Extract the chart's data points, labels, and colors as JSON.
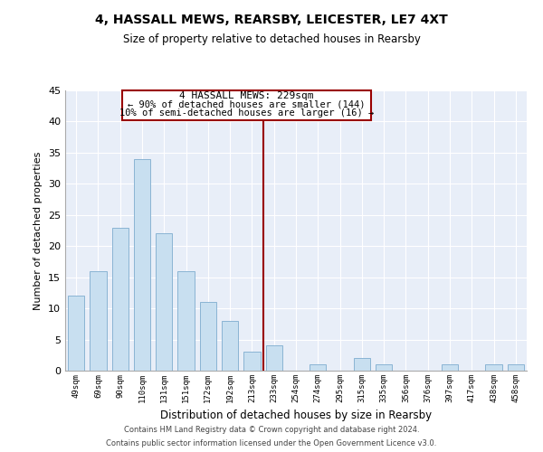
{
  "title": "4, HASSALL MEWS, REARSBY, LEICESTER, LE7 4XT",
  "subtitle": "Size of property relative to detached houses in Rearsby",
  "xlabel": "Distribution of detached houses by size in Rearsby",
  "ylabel": "Number of detached properties",
  "bar_labels": [
    "49sqm",
    "69sqm",
    "90sqm",
    "110sqm",
    "131sqm",
    "151sqm",
    "172sqm",
    "192sqm",
    "213sqm",
    "233sqm",
    "254sqm",
    "274sqm",
    "295sqm",
    "315sqm",
    "335sqm",
    "356sqm",
    "376sqm",
    "397sqm",
    "417sqm",
    "438sqm",
    "458sqm"
  ],
  "bar_values": [
    12,
    16,
    23,
    34,
    22,
    16,
    11,
    8,
    3,
    4,
    0,
    1,
    0,
    2,
    1,
    0,
    0,
    1,
    0,
    1,
    1
  ],
  "bar_color": "#c8dff0",
  "bar_edge_color": "#8ab4d4",
  "marker_color": "#990000",
  "ylim": [
    0,
    45
  ],
  "yticks": [
    0,
    5,
    10,
    15,
    20,
    25,
    30,
    35,
    40,
    45
  ],
  "bg_color": "#e8eef8",
  "grid_color": "#ffffff",
  "annotation_title": "4 HASSALL MEWS: 229sqm",
  "annotation_line1": "← 90% of detached houses are smaller (144)",
  "annotation_line2": "10% of semi-detached houses are larger (16) →",
  "footer_line1": "Contains HM Land Registry data © Crown copyright and database right 2024.",
  "footer_line2": "Contains public sector information licensed under the Open Government Licence v3.0."
}
